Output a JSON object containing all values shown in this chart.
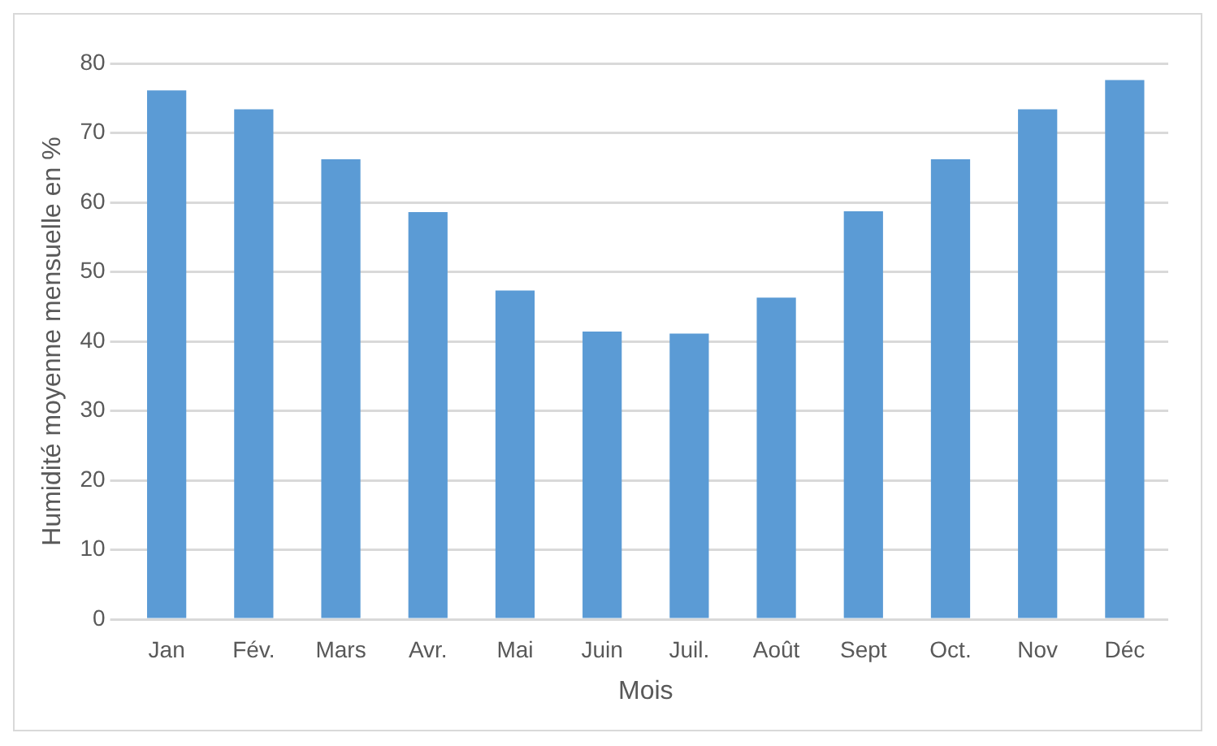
{
  "chart_data": {
    "type": "bar",
    "xlabel": "Mois",
    "ylabel": "Humidité moyenne mensuelle en %",
    "categories": [
      "Jan",
      "Fév.",
      "Mars",
      "Avr.",
      "Mai",
      "Juin",
      "Juil.",
      "Août",
      "Sept",
      "Oct.",
      "Nov",
      "Déc"
    ],
    "values": [
      76.1,
      73.4,
      66.2,
      58.6,
      47.3,
      41.4,
      41.1,
      46.3,
      58.7,
      66.2,
      73.4,
      77.6
    ],
    "color": "#5b9bd5",
    "ylim": [
      0,
      80
    ],
    "yticks": [
      0,
      10,
      20,
      30,
      40,
      50,
      60,
      70,
      80
    ],
    "grid": "y"
  }
}
